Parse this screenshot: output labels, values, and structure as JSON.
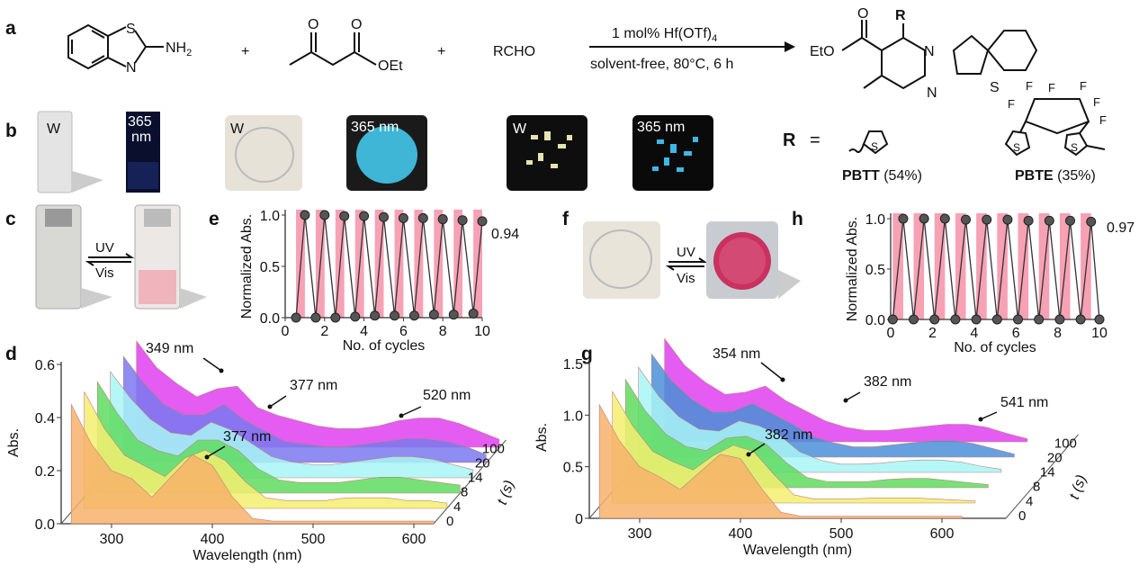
{
  "panel_labels": {
    "a": "a",
    "b": "b",
    "c": "c",
    "d": "d",
    "e": "e",
    "f": "f",
    "g": "g",
    "h": "h"
  },
  "reaction": {
    "reactant1": {
      "s": "S",
      "n": "N",
      "nh2": "NH",
      "sub2": "2"
    },
    "plus1": "+",
    "plus2": "+",
    "reactant2": {
      "o1": "O",
      "o2": "O",
      "oet": "OEt"
    },
    "reactant3": "RCHO",
    "conditions_top": "1 mol% Hf(OTf)",
    "conditions_top_sub": "4",
    "conditions_bottom": "solvent-free, 80°C, 6 h",
    "product": {
      "r": "R",
      "o": "O",
      "eto": "EtO",
      "n1": "N",
      "n2": "N",
      "s": "S"
    }
  },
  "photos_b": {
    "w1": "W",
    "uv1": "365\nnm",
    "uv1_line1": "365",
    "uv1_line2": "nm",
    "w2": "W",
    "uv2": "365 nm",
    "w3": "W",
    "uv3": "365 nm"
  },
  "r_groups": {
    "r_label": "R",
    "equals": "=",
    "pbtt_name": "PBTT",
    "pbtt_yield": " (54%)",
    "pbte_name": "PBTE",
    "pbte_yield": " (35%)",
    "s": "S",
    "f": "F"
  },
  "switch_c": {
    "uv": "UV",
    "vis": "Vis"
  },
  "switch_f": {
    "uv": "UV",
    "vis": "Vis"
  },
  "colors": {
    "band": "#f7a1b5",
    "orange": "#f7b26a",
    "yellow": "#f5f07a",
    "green": "#5fdc5f",
    "cyan": "#a8f4f6",
    "blue": "#7b78f0",
    "magenta": "#e040f0"
  },
  "chart_data": [
    {
      "id": "e",
      "type": "line",
      "xlabel": "No. of cycles",
      "ylabel": "Normalized Abs.",
      "xlim": [
        0,
        10
      ],
      "ylim": [
        0,
        1
      ],
      "xticks": [
        "0",
        "2",
        "4",
        "6",
        "8",
        "10"
      ],
      "yticks": [
        "0.0",
        "0.5",
        "1.0"
      ],
      "end_label": "0.94",
      "x": [
        0.55,
        1,
        1.55,
        2,
        2.55,
        3,
        3.55,
        4,
        4.55,
        5,
        5.55,
        6,
        6.55,
        7,
        7.55,
        8,
        8.55,
        9,
        9.55,
        10
      ],
      "y": [
        0.0,
        1.0,
        0.0,
        1.0,
        0.0,
        0.99,
        0.01,
        0.99,
        0.02,
        0.98,
        0.02,
        0.97,
        0.02,
        0.97,
        0.03,
        0.96,
        0.03,
        0.95,
        0.04,
        0.94
      ],
      "uv_bands": [
        [
          0.55,
          1
        ],
        [
          1.55,
          2
        ],
        [
          2.55,
          3
        ],
        [
          3.55,
          4
        ],
        [
          4.55,
          5
        ],
        [
          5.55,
          6
        ],
        [
          6.55,
          7
        ],
        [
          7.55,
          8
        ],
        [
          8.55,
          9
        ],
        [
          9.55,
          10
        ]
      ]
    },
    {
      "id": "h",
      "type": "line",
      "xlabel": "No. of cycles",
      "ylabel": "Normalized Abs.",
      "xlim": [
        0,
        10
      ],
      "ylim": [
        0,
        1
      ],
      "xticks": [
        "0",
        "2",
        "4",
        "6",
        "8",
        "10"
      ],
      "yticks": [
        "0.0",
        "0.5",
        "1.0"
      ],
      "end_label": "0.97",
      "x": [
        0.1,
        0.6,
        1.1,
        1.6,
        2.1,
        2.6,
        3.1,
        3.6,
        4.1,
        4.6,
        5.1,
        5.6,
        6.1,
        6.6,
        7.1,
        7.6,
        8.1,
        8.6,
        9.1,
        9.6,
        10
      ],
      "y": [
        0.0,
        1.0,
        0.0,
        1.0,
        0.0,
        1.0,
        0.0,
        0.99,
        0.0,
        0.99,
        0.0,
        0.99,
        0.0,
        0.98,
        0.0,
        0.98,
        0.0,
        0.98,
        0.0,
        0.97,
        0.0
      ],
      "uv_bands": [
        [
          0.1,
          0.6
        ],
        [
          1.1,
          1.6
        ],
        [
          2.1,
          2.6
        ],
        [
          3.1,
          3.6
        ],
        [
          4.1,
          4.6
        ],
        [
          5.1,
          5.6
        ],
        [
          6.1,
          6.6
        ],
        [
          7.1,
          7.6
        ],
        [
          8.1,
          8.6
        ],
        [
          9.1,
          9.6
        ]
      ]
    },
    {
      "id": "d",
      "type": "area",
      "xlabel": "Wavelength (nm)",
      "ylabel": "Abs.",
      "zlabel": "t (s)",
      "xlim": [
        250,
        620
      ],
      "ylim": [
        0,
        0.6
      ],
      "xticks": [
        "300",
        "400",
        "500",
        "600"
      ],
      "yticks": [
        "0.0",
        "0.2",
        "0.4",
        "0.6"
      ],
      "zticks": [
        "0",
        "4",
        "8",
        "14",
        "20",
        "100"
      ],
      "annotations": [
        "349 nm",
        "377 nm",
        "520 nm",
        "377 nm"
      ],
      "wavelength": [
        260,
        280,
        300,
        320,
        340,
        360,
        380,
        400,
        420,
        440,
        460,
        480,
        500,
        520,
        540,
        560,
        580,
        600,
        620
      ],
      "series": [
        {
          "t": 0,
          "color": "#f7b26a",
          "values": [
            0.45,
            0.3,
            0.2,
            0.17,
            0.1,
            0.18,
            0.26,
            0.22,
            0.1,
            0.02,
            0.01,
            0.01,
            0.01,
            0.01,
            0.01,
            0.01,
            0.01,
            0.01,
            0.01
          ]
        },
        {
          "t": 4,
          "color": "#f3ef6e",
          "values": [
            0.44,
            0.3,
            0.2,
            0.16,
            0.12,
            0.19,
            0.22,
            0.18,
            0.1,
            0.04,
            0.03,
            0.03,
            0.03,
            0.04,
            0.04,
            0.04,
            0.03,
            0.03,
            0.02
          ]
        },
        {
          "t": 8,
          "color": "#5fdc5f",
          "values": [
            0.42,
            0.3,
            0.2,
            0.16,
            0.14,
            0.2,
            0.2,
            0.16,
            0.09,
            0.05,
            0.04,
            0.04,
            0.04,
            0.05,
            0.06,
            0.06,
            0.05,
            0.04,
            0.03
          ]
        },
        {
          "t": 14,
          "color": "#a8f4f6",
          "values": [
            0.4,
            0.3,
            0.22,
            0.17,
            0.16,
            0.21,
            0.18,
            0.13,
            0.08,
            0.06,
            0.05,
            0.05,
            0.06,
            0.07,
            0.08,
            0.08,
            0.07,
            0.05,
            0.03
          ]
        },
        {
          "t": 20,
          "color": "#7b78f0",
          "values": [
            0.4,
            0.3,
            0.22,
            0.18,
            0.18,
            0.22,
            0.16,
            0.12,
            0.08,
            0.07,
            0.06,
            0.06,
            0.07,
            0.08,
            0.09,
            0.09,
            0.08,
            0.06,
            0.03
          ]
        },
        {
          "t": 100,
          "color": "#e040f0",
          "values": [
            0.4,
            0.3,
            0.24,
            0.19,
            0.22,
            0.23,
            0.15,
            0.12,
            0.1,
            0.08,
            0.07,
            0.07,
            0.08,
            0.1,
            0.11,
            0.11,
            0.09,
            0.06,
            0.03
          ]
        }
      ]
    },
    {
      "id": "g",
      "type": "area",
      "xlabel": "Wavelength (nm)",
      "ylabel": "Abs.",
      "zlabel": "t (s)",
      "xlim": [
        250,
        620
      ],
      "ylim": [
        0,
        1.5
      ],
      "xticks": [
        "300",
        "400",
        "500",
        "600"
      ],
      "yticks": [
        "0",
        "0.5",
        "1.0",
        "1.5"
      ],
      "zticks": [
        "0",
        "4",
        "8",
        "14",
        "20",
        "100"
      ],
      "annotations": [
        "354 nm",
        "382 nm",
        "541 nm",
        "382 nm"
      ],
      "wavelength": [
        260,
        280,
        300,
        320,
        340,
        360,
        380,
        400,
        420,
        440,
        460,
        480,
        500,
        520,
        540,
        560,
        580,
        600,
        620
      ],
      "series": [
        {
          "t": 0,
          "color": "#f7b26a",
          "values": [
            1.1,
            0.75,
            0.5,
            0.4,
            0.28,
            0.45,
            0.62,
            0.58,
            0.3,
            0.06,
            0.02,
            0.02,
            0.02,
            0.02,
            0.02,
            0.02,
            0.02,
            0.02,
            0.02
          ]
        },
        {
          "t": 4,
          "color": "#f3ef6e",
          "values": [
            1.08,
            0.75,
            0.5,
            0.4,
            0.32,
            0.46,
            0.56,
            0.5,
            0.28,
            0.08,
            0.04,
            0.04,
            0.04,
            0.05,
            0.05,
            0.05,
            0.04,
            0.03,
            0.02
          ]
        },
        {
          "t": 8,
          "color": "#5fdc5f",
          "values": [
            1.05,
            0.74,
            0.52,
            0.4,
            0.36,
            0.48,
            0.5,
            0.42,
            0.24,
            0.1,
            0.06,
            0.06,
            0.06,
            0.08,
            0.09,
            0.09,
            0.07,
            0.05,
            0.03
          ]
        },
        {
          "t": 14,
          "color": "#a8f4f6",
          "values": [
            1.02,
            0.74,
            0.54,
            0.42,
            0.4,
            0.5,
            0.45,
            0.36,
            0.2,
            0.12,
            0.08,
            0.08,
            0.09,
            0.11,
            0.12,
            0.12,
            0.1,
            0.06,
            0.03
          ]
        },
        {
          "t": 20,
          "color": "#4b8fd8",
          "values": [
            1.0,
            0.74,
            0.56,
            0.44,
            0.44,
            0.52,
            0.42,
            0.32,
            0.2,
            0.14,
            0.1,
            0.1,
            0.12,
            0.14,
            0.16,
            0.16,
            0.13,
            0.08,
            0.03
          ]
        },
        {
          "t": 100,
          "color": "#e040f0",
          "values": [
            1.0,
            0.74,
            0.58,
            0.46,
            0.48,
            0.54,
            0.4,
            0.3,
            0.2,
            0.14,
            0.11,
            0.11,
            0.13,
            0.15,
            0.17,
            0.17,
            0.14,
            0.08,
            0.03
          ]
        }
      ]
    }
  ]
}
